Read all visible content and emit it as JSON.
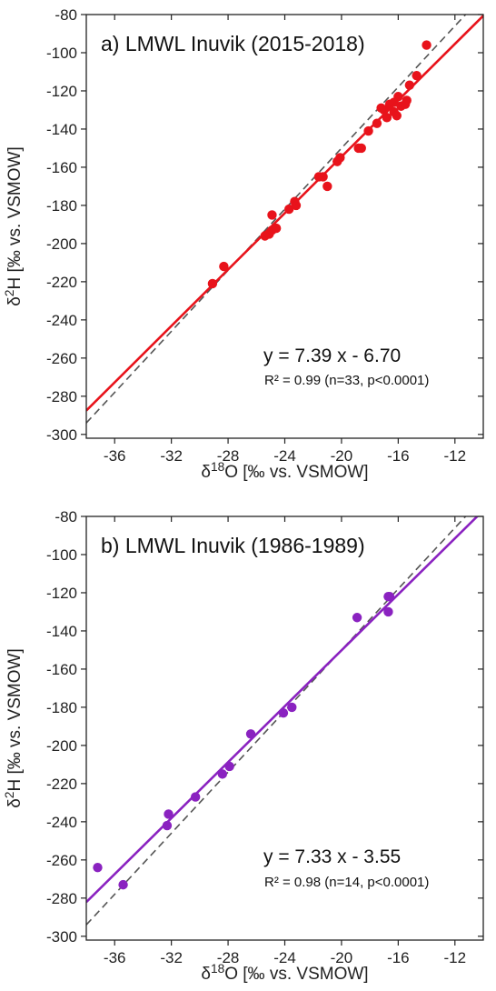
{
  "chart_data": [
    {
      "type": "scatter",
      "title": "a) LMWL Inuvik (2015-2018)",
      "xlabel": "δ18O [‰ vs. VSMOW]",
      "ylabel": "δ2H [‰ vs. VSMOW]",
      "xlim": [
        -38,
        -10
      ],
      "ylim": [
        -302,
        -80
      ],
      "xticks": [
        -36,
        -32,
        -28,
        -24,
        -20,
        -16,
        -12
      ],
      "yticks": [
        -80,
        -100,
        -120,
        -140,
        -160,
        -180,
        -200,
        -220,
        -240,
        -260,
        -280,
        -300
      ],
      "grid": false,
      "color": "#e8131b",
      "equation": "y = 7.39 x - 6.70",
      "stats": "R² = 0.99 (n=33, p<0.0001)",
      "fit": {
        "slope": 7.39,
        "intercept": -6.7
      },
      "reference_line": {
        "slope": 8,
        "intercept": 10,
        "style": "dashed"
      },
      "points": [
        {
          "x": -29.1,
          "y": -221
        },
        {
          "x": -28.3,
          "y": -212
        },
        {
          "x": -25.4,
          "y": -196
        },
        {
          "x": -25.1,
          "y": -195
        },
        {
          "x": -24.9,
          "y": -193
        },
        {
          "x": -24.6,
          "y": -192
        },
        {
          "x": -24.9,
          "y": -185
        },
        {
          "x": -23.7,
          "y": -182
        },
        {
          "x": -23.3,
          "y": -178
        },
        {
          "x": -23.2,
          "y": -180
        },
        {
          "x": -21.6,
          "y": -165
        },
        {
          "x": -21.3,
          "y": -165
        },
        {
          "x": -21.0,
          "y": -170
        },
        {
          "x": -20.3,
          "y": -157
        },
        {
          "x": -20.1,
          "y": -155
        },
        {
          "x": -18.8,
          "y": -150
        },
        {
          "x": -18.6,
          "y": -150
        },
        {
          "x": -18.1,
          "y": -141
        },
        {
          "x": -17.5,
          "y": -137
        },
        {
          "x": -17.0,
          "y": -130
        },
        {
          "x": -16.8,
          "y": -134
        },
        {
          "x": -16.6,
          "y": -127
        },
        {
          "x": -16.3,
          "y": -131
        },
        {
          "x": -16.1,
          "y": -133
        },
        {
          "x": -16.0,
          "y": -123
        },
        {
          "x": -15.8,
          "y": -128
        },
        {
          "x": -15.5,
          "y": -127
        },
        {
          "x": -15.4,
          "y": -125
        },
        {
          "x": -15.2,
          "y": -117
        },
        {
          "x": -14.7,
          "y": -112
        },
        {
          "x": -16.3,
          "y": -126
        },
        {
          "x": -17.2,
          "y": -129
        },
        {
          "x": -14.0,
          "y": -96
        }
      ]
    },
    {
      "type": "scatter",
      "title": "b) LMWL Inuvik (1986-1989)",
      "xlabel": "δ18O [‰ vs. VSMOW]",
      "ylabel": "δ2H [‰ vs. VSMOW]",
      "xlim": [
        -38,
        -10
      ],
      "ylim": [
        -302,
        -80
      ],
      "xticks": [
        -36,
        -32,
        -28,
        -24,
        -20,
        -16,
        -12
      ],
      "yticks": [
        -80,
        -100,
        -120,
        -140,
        -160,
        -180,
        -200,
        -220,
        -240,
        -260,
        -280,
        -300
      ],
      "grid": false,
      "color": "#8a22c0",
      "equation": "y = 7.33 x - 3.55",
      "stats": "R² = 0.98 (n=14, p<0.0001)",
      "fit": {
        "slope": 7.33,
        "intercept": -3.55
      },
      "reference_line": {
        "slope": 8,
        "intercept": 10,
        "style": "dashed"
      },
      "points": [
        {
          "x": -37.2,
          "y": -264
        },
        {
          "x": -35.4,
          "y": -273
        },
        {
          "x": -32.3,
          "y": -242
        },
        {
          "x": -32.2,
          "y": -236
        },
        {
          "x": -30.3,
          "y": -227
        },
        {
          "x": -28.4,
          "y": -215
        },
        {
          "x": -27.9,
          "y": -211
        },
        {
          "x": -26.4,
          "y": -194
        },
        {
          "x": -24.1,
          "y": -183
        },
        {
          "x": -23.5,
          "y": -180
        },
        {
          "x": -18.9,
          "y": -133
        },
        {
          "x": -16.7,
          "y": -130
        },
        {
          "x": -16.6,
          "y": -122
        },
        {
          "x": -16.7,
          "y": -122
        }
      ]
    }
  ]
}
